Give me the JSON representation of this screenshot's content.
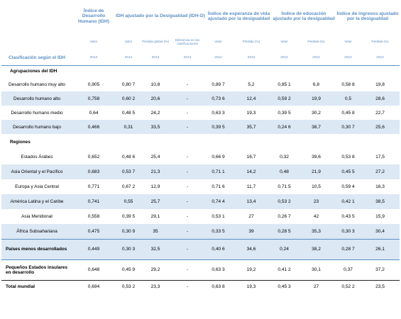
{
  "headers": {
    "idh": "Índice de Desarrollo Humano (IDH)",
    "idhd": "IDH ajustado por la Desigualdad (IDH-D)",
    "life": "Índice de esperanza de vida ajustado por la desigualdad",
    "edu": "Índice de educación ajustado por la desigualdad",
    "inc": "Índice de ingresos ajustado por la desigualdad"
  },
  "subheaders": {
    "valor": "Valor",
    "perdida_global": "Pérdida global (%)",
    "diferencia": "Diferencia en las clasificaciones",
    "perdida": "Pérdida (%)"
  },
  "classification_label": "Clasificación según el IDH",
  "year": "2012",
  "sections": {
    "groups": "Agrupaciones del IDH",
    "regions": "Regiones"
  },
  "rows_groups": [
    {
      "name": "Desarrollo humano muy alto",
      "idh": "0,905",
      "v": "0,80 7",
      "pg": "10,8",
      "d": "-",
      "lv": "0,89 7",
      "lp": "5,2",
      "ev": "0,85 1",
      "ep": "6,8",
      "iv": "0,58 8",
      "ip": "19,8"
    },
    {
      "name": "Desarrollo humano alto",
      "idh": "0,758",
      "v": "0,60 2",
      "pg": "20,6",
      "d": "-",
      "lv": "0,73 6",
      "lp": "12,4",
      "ev": "0,59 2",
      "ep": "19,9",
      "iv": "0,5",
      "ip": "28,6"
    },
    {
      "name": "Desarrollo humano medio",
      "idh": "0,64",
      "v": "0,48 5",
      "pg": "24,2",
      "d": "-",
      "lv": "0,63 3",
      "lp": "19,3",
      "ev": "0,39 5",
      "ep": "30,2",
      "iv": "0,45 8",
      "ip": "22,7"
    },
    {
      "name": "Desarrollo humano bajo",
      "idh": "0,466",
      "v": "0,31",
      "pg": "33,5",
      "d": "-",
      "lv": "0,39 5",
      "lp": "35,7",
      "ev": "0,24 6",
      "ep": "38,7",
      "iv": "0,30 7",
      "ip": "25,6"
    }
  ],
  "rows_regions": [
    {
      "name": "Estados Árabes",
      "idh": "0,652",
      "v": "0,48 6",
      "pg": "25,4",
      "d": "-",
      "lv": "0,66 9",
      "lp": "16,7",
      "ev": "0,32",
      "ep": "39,6",
      "iv": "0,53 8",
      "ip": "17,5"
    },
    {
      "name": "Asia Oriental y el Pacífico",
      "idh": "0,683",
      "v": "0,53 7",
      "pg": "21,3",
      "d": "-",
      "lv": "0,71 1",
      "lp": "14,2",
      "ev": "0,48",
      "ep": "21,9",
      "iv": "0,45 5",
      "ip": "27,2"
    },
    {
      "name": "Europa y Asia Central",
      "idh": "0,771",
      "v": "0,67 2",
      "pg": "12,9",
      "d": "-",
      "lv": "0,71 6",
      "lp": "11,7",
      "ev": "0,71 5",
      "ep": "10,5",
      "iv": "0,59 4",
      "ip": "16,3"
    },
    {
      "name": "América Latina y el Caribe",
      "idh": "0,741",
      "v": "0,55",
      "pg": "25,7",
      "d": "-",
      "lv": "0,74 4",
      "lp": "13,4",
      "ev": "0,53 2",
      "ep": "23",
      "iv": "0,42 1",
      "ip": "38,5"
    },
    {
      "name": "Asia Meridional",
      "idh": "0,558",
      "v": "0,39 5",
      "pg": "29,1",
      "d": "-",
      "lv": "0,53 1",
      "lp": "27",
      "ev": "0,26 7",
      "ep": "42",
      "iv": "0,43 5",
      "ip": "15,9"
    },
    {
      "name": "África Subsahariana",
      "idh": "0,475",
      "v": "0,30 9",
      "pg": "35",
      "d": "-",
      "lv": "0,33 5",
      "lp": "39",
      "ev": "0,28 5",
      "ep": "35,3",
      "iv": "0,30 3",
      "ip": "30,4"
    }
  ],
  "rows_extra": [
    {
      "name": "Países menos desarrollados",
      "idh": "0,449",
      "v": "0,30 3",
      "pg": "32,5",
      "d": "-",
      "lv": "0,40 6",
      "lp": "34,6",
      "ev": "0,24",
      "ep": "38,2",
      "iv": "0,28 7",
      "ip": "26,1"
    },
    {
      "name": "Pequeños Estados insulares en desarrollo",
      "idh": "0,648",
      "v": "0,45 9",
      "pg": "29,2",
      "d": "-",
      "lv": "0,63 3",
      "lp": "19,2",
      "ev": "0,41 2",
      "ep": "30,1",
      "iv": "0,37",
      "ip": "37,2"
    }
  ],
  "row_total": {
    "name": "Total mundial",
    "idh": "0,694",
    "v": "0,53 2",
    "pg": "23,3",
    "d": "-",
    "lv": "0,63 8",
    "lp": "19,3",
    "ev": "0,45 3",
    "ep": "27",
    "iv": "0,52 2",
    "ip": "23,5"
  }
}
